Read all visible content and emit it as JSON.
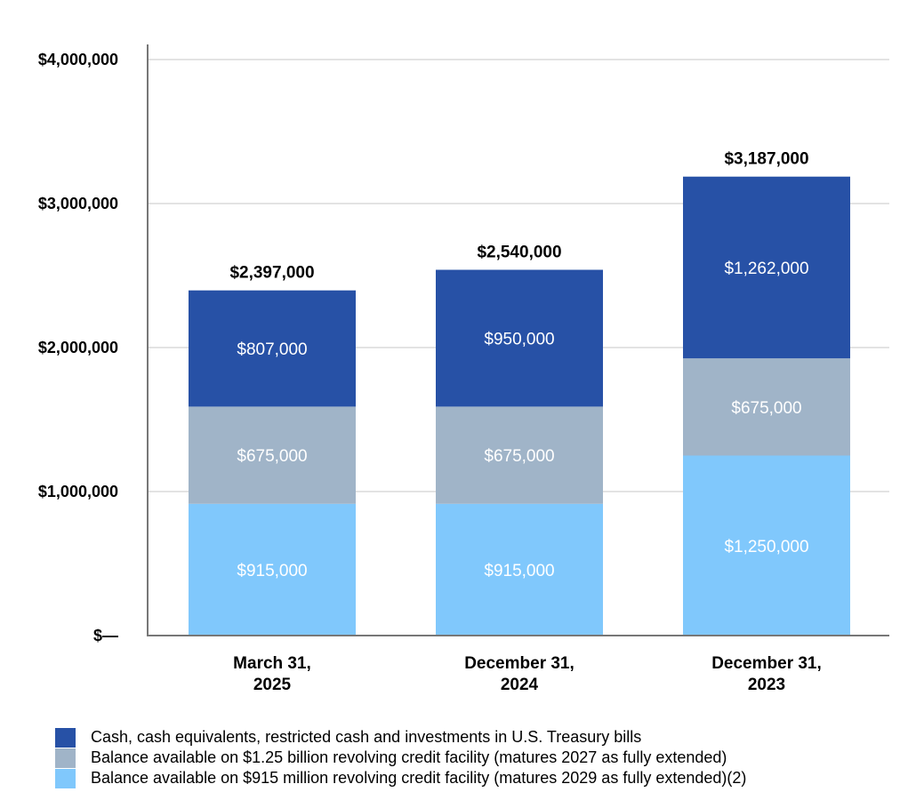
{
  "chart_data": {
    "type": "bar",
    "stacked": true,
    "categories": [
      "March 31,\n2025",
      "December 31,\n2024",
      "December 31,\n2023"
    ],
    "series": [
      {
        "name": "Balance available on $915 million revolving credit facility (matures 2029 as fully extended)(2)",
        "color": "#80c8fc",
        "values": [
          915000,
          915000,
          1250000
        ],
        "labels": [
          "$915,000",
          "$915,000",
          "$1,250,000"
        ]
      },
      {
        "name": "Balance available on $1.25 billion revolving credit facility (matures 2027 as fully extended)",
        "color": "#a0b4c8",
        "values": [
          675000,
          675000,
          675000
        ],
        "labels": [
          "$675,000",
          "$675,000",
          "$675,000"
        ]
      },
      {
        "name": "Cash, cash equivalents, restricted cash and investments in U.S. Treasury bills",
        "color": "#2751a6",
        "values": [
          807000,
          950000,
          1262000
        ],
        "labels": [
          "$807,000",
          "$950,000",
          "$1,262,000"
        ]
      }
    ],
    "totals": [
      "$2,397,000",
      "$2,540,000",
      "$3,187,000"
    ],
    "yticks": [
      0,
      1000000,
      2000000,
      3000000,
      4000000
    ],
    "ytick_labels": [
      "$—",
      "$1,000,000",
      "$2,000,000",
      "$3,000,000",
      "$4,000,000"
    ],
    "ylim": [
      0,
      4000000
    ],
    "grid": true,
    "legend": "bottom"
  }
}
